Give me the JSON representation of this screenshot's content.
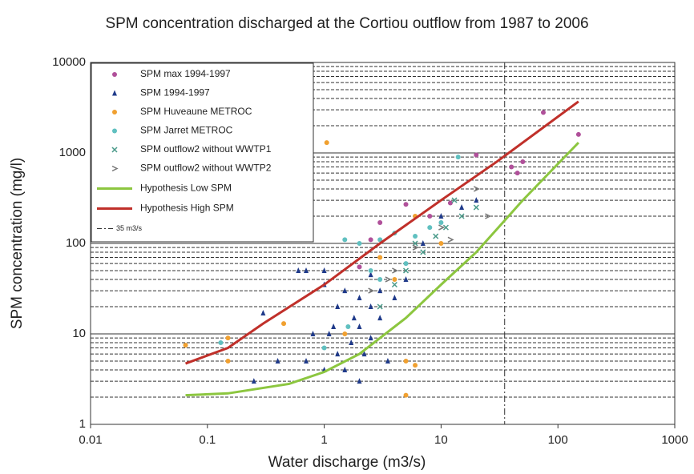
{
  "chart_data": {
    "type": "scatter",
    "title": "SPM concentration discharged at the Cortiou outflow from 1987 to 2006",
    "x_label": "Water discharge (m3/s)",
    "y_label": "SPM concentration (mg/l)",
    "xscale": "log",
    "yscale": "log",
    "xlim": [
      0.01,
      1000
    ],
    "ylim": [
      1,
      10000
    ],
    "xticks": [
      0.01,
      0.1,
      1,
      10,
      100,
      1000
    ],
    "yticks": [
      1,
      10,
      100,
      1000,
      10000
    ],
    "grid": true,
    "minor_grid": true,
    "legend": "upper left",
    "vline": {
      "value": 35,
      "label": "35 m3/s",
      "color": "#333333"
    },
    "series": [
      {
        "name": "SPM max 1994-1997",
        "color": "#b0509a",
        "marker": "circle",
        "x": [
          2,
          2.5,
          3,
          5,
          8,
          12,
          20,
          40,
          45,
          50,
          75,
          150
        ],
        "values": [
          55,
          110,
          170,
          270,
          200,
          280,
          950,
          700,
          600,
          800,
          2800,
          1600
        ]
      },
      {
        "name": "SPM 1994-1997",
        "color": "#1f3a8a",
        "marker": "triangle",
        "x": [
          0.25,
          0.3,
          0.4,
          0.6,
          0.7,
          0.7,
          0.8,
          1,
          1,
          1,
          1.1,
          1.2,
          1.3,
          1.3,
          1.5,
          1.5,
          1.7,
          1.8,
          2,
          2,
          2,
          2.2,
          2.5,
          2.5,
          2.5,
          3,
          3,
          3.5,
          4,
          5,
          7,
          10,
          15,
          20
        ],
        "values": [
          3,
          17,
          5,
          50,
          50,
          5,
          10,
          4,
          35,
          50,
          10,
          12,
          6,
          20,
          30,
          4,
          8,
          15,
          25,
          12,
          3,
          6,
          20,
          9,
          45,
          15,
          30,
          5,
          25,
          40,
          100,
          200,
          250,
          300
        ]
      },
      {
        "name": "SPM Huveaune METROC",
        "color": "#f0a030",
        "marker": "circle",
        "x": [
          0.065,
          0.15,
          0.15,
          0.45,
          1.05,
          1.5,
          3,
          4,
          5,
          5,
          6,
          6,
          10
        ],
        "values": [
          7.5,
          9,
          5,
          13,
          1300,
          10,
          70,
          40,
          5,
          2.1,
          200,
          4.5,
          100
        ]
      },
      {
        "name": "SPM Jarret METROC",
        "color": "#60c0c0",
        "marker": "circle",
        "x": [
          0.13,
          1,
          1.5,
          1.6,
          2,
          2.5,
          3,
          3,
          4,
          5,
          6,
          8,
          10,
          14
        ],
        "values": [
          8,
          7,
          110,
          12,
          100,
          50,
          110,
          40,
          130,
          60,
          120,
          150,
          170,
          900
        ]
      },
      {
        "name": "SPM outflow2 without WWTP1",
        "color": "#4a9a8a",
        "marker": "x",
        "x": [
          3,
          4,
          5,
          6,
          7,
          9,
          11,
          13,
          15,
          20
        ],
        "values": [
          20,
          35,
          50,
          100,
          80,
          120,
          150,
          300,
          200,
          250
        ]
      },
      {
        "name": "SPM outflow2 without WWTP2",
        "color": "#777777",
        "marker": "chevron",
        "x": [
          2.5,
          3.5,
          4,
          6,
          10,
          12,
          20,
          25
        ],
        "values": [
          30,
          40,
          50,
          90,
          150,
          110,
          400,
          200
        ]
      },
      {
        "name": "Hypothesis Low SPM",
        "color": "#8cc63f",
        "mode": "line",
        "x": [
          0.065,
          0.15,
          0.5,
          1,
          2,
          5,
          10,
          20,
          50,
          150
        ],
        "values": [
          2.1,
          2.2,
          2.8,
          3.8,
          6,
          15,
          35,
          80,
          300,
          1300
        ]
      },
      {
        "name": "Hypothesis High SPM",
        "color": "#c0302a",
        "mode": "line",
        "x": [
          0.065,
          0.15,
          0.3,
          1,
          3,
          10,
          30,
          150
        ],
        "values": [
          4.7,
          7,
          13,
          35,
          100,
          300,
          800,
          3700
        ]
      }
    ]
  }
}
